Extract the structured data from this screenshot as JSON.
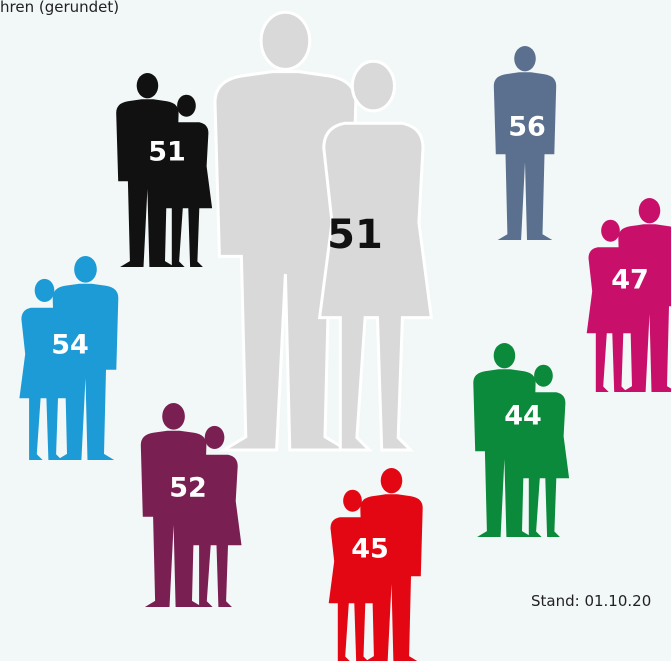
{
  "header": {
    "text": "hren (gerundet)"
  },
  "figures": [
    {
      "value": 51,
      "color": "#d9d9d9",
      "label_color": "#111111"
    },
    {
      "value": 51,
      "color": "#111111",
      "label_color": "#ffffff"
    },
    {
      "value": 56,
      "color": "#5b6f8e",
      "label_color": "#ffffff"
    },
    {
      "value": 47,
      "color": "#c8106a",
      "label_color": "#ffffff"
    },
    {
      "value": 54,
      "color": "#1d9bd7",
      "label_color": "#ffffff"
    },
    {
      "value": 52,
      "color": "#7a1f52",
      "label_color": "#ffffff"
    },
    {
      "value": 45,
      "color": "#e30613",
      "label_color": "#ffffff"
    },
    {
      "value": 44,
      "color": "#0b8a3b",
      "label_color": "#ffffff"
    }
  ],
  "footer": {
    "text": "Stand: 01.10.20"
  }
}
